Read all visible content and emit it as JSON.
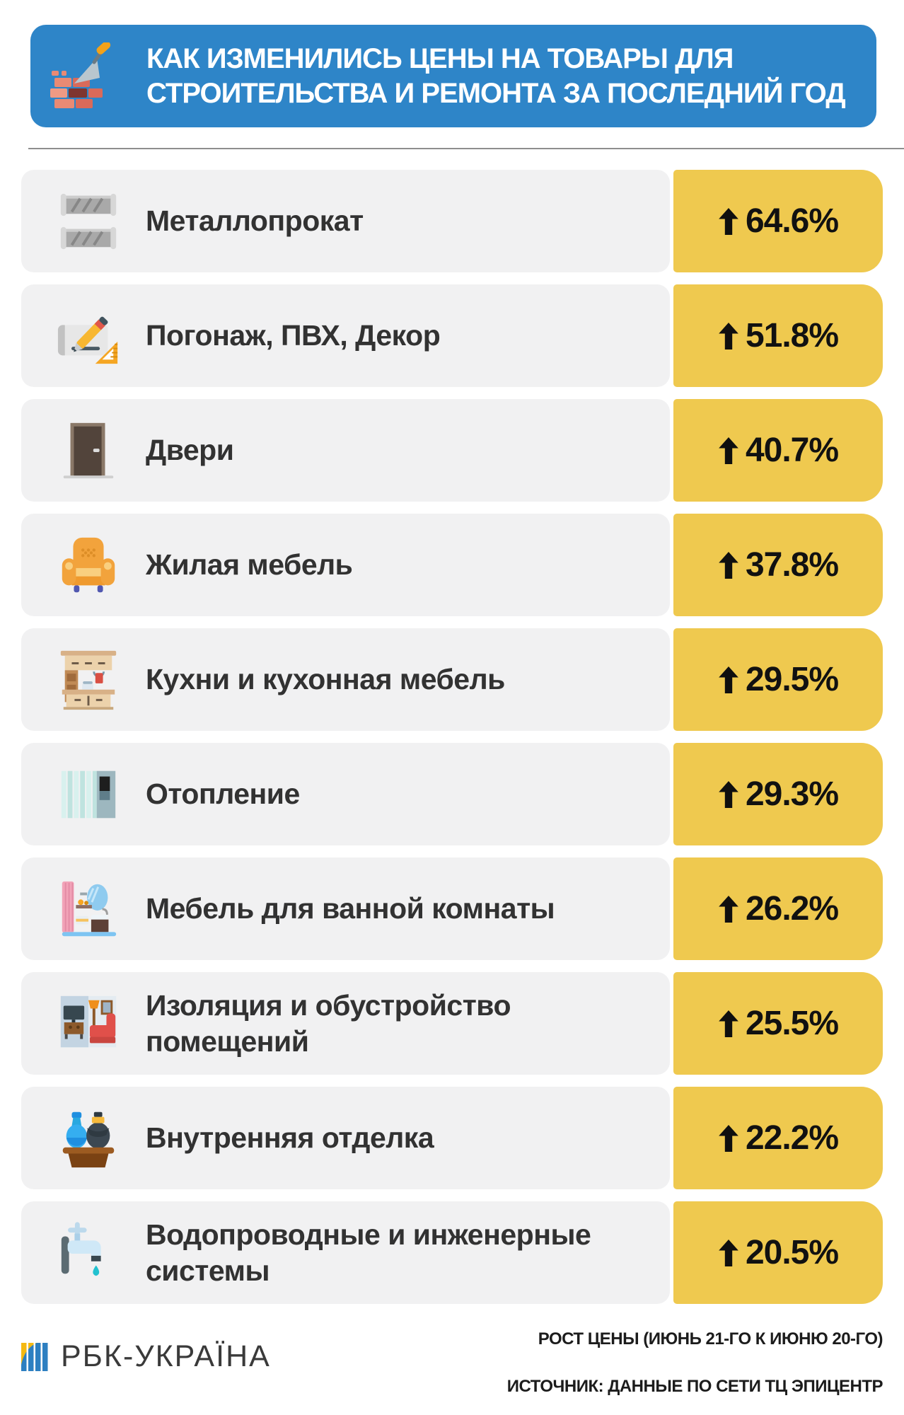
{
  "header": {
    "title": "КАК ИЗМЕНИЛИСЬ ЦЕНЫ НА ТОВАРЫ ДЛЯ\nСТРОИТЕЛЬСТВА И РЕМОНТА ЗА ПОСЛЕДНИЙ ГОД",
    "icon": "trowel-bricks-icon",
    "background_color": "#2E85C8"
  },
  "rows": [
    {
      "icon": "metal-beams-icon",
      "label": "Металлопрокат",
      "value": "64.6%"
    },
    {
      "icon": "blueprint-pencil-icon",
      "label": "Погонаж, ПВХ, Декор",
      "value": "51.8%"
    },
    {
      "icon": "door-icon",
      "label": "Двери",
      "value": "40.7%"
    },
    {
      "icon": "armchair-icon",
      "label": "Жилая мебель",
      "value": "37.8%"
    },
    {
      "icon": "kitchen-furniture-icon",
      "label": "Кухни и кухонная мебель",
      "value": "29.5%"
    },
    {
      "icon": "radiator-icon",
      "label": "Отопление",
      "value": "29.3%"
    },
    {
      "icon": "bathroom-furniture-icon",
      "label": "Мебель для ванной комнаты",
      "value": "26.2%"
    },
    {
      "icon": "room-insulation-icon",
      "label": "Изоляция и обустройство\nпомещений",
      "value": "25.5%"
    },
    {
      "icon": "vases-decor-icon",
      "label": "Внутренняя отделка",
      "value": "22.2%"
    },
    {
      "icon": "faucet-icon",
      "label": "Водопроводные и инженерные\nсистемы",
      "value": "20.5%"
    }
  ],
  "footer": {
    "logo_icon": "rbc-logo-icon",
    "logo_text": "РБК-УКРАЇНА",
    "note": "РОСТ ЦЕНЫ (ИЮНЬ 21-ГО К ИЮНЮ 20-ГО)",
    "source": "ИСТОЧНИК: ДАННЫЕ ПО СЕТИ ТЦ ЭПИЦЕНТР"
  },
  "colors": {
    "header_blue": "#2E85C8",
    "accent_yellow": "#EFC94F",
    "row_gray": "#F1F1F2",
    "text_dark": "#323232"
  },
  "chart_data": {
    "type": "bar",
    "title": "КАК ИЗМЕНИЛИСЬ ЦЕНЫ НА ТОВАРЫ ДЛЯ СТРОИТЕЛЬСТВА И РЕМОНТА ЗА ПОСЛЕДНИЙ ГОД",
    "categories": [
      "Металлопрокат",
      "Погонаж, ПВХ, Декор",
      "Двери",
      "Жилая мебель",
      "Кухни и кухонная мебель",
      "Отопление",
      "Мебель для ванной комнаты",
      "Изоляция и обустройство помещений",
      "Внутренняя отделка",
      "Водопроводные и инженерные системы"
    ],
    "values": [
      64.6,
      51.8,
      40.7,
      37.8,
      29.5,
      29.3,
      26.2,
      25.5,
      22.2,
      20.5
    ],
    "unit": "%",
    "direction": "increase",
    "xlabel": "",
    "ylabel": "Рост цены, %",
    "note": "РОСТ ЦЕНЫ (ИЮНЬ 21-ГО К ИЮНЮ 20-ГО)",
    "source": "ИСТОЧНИК: ДАННЫЕ ПО СЕТИ ТЦ ЭПИЦЕНТР",
    "legend": false,
    "grid": false
  }
}
